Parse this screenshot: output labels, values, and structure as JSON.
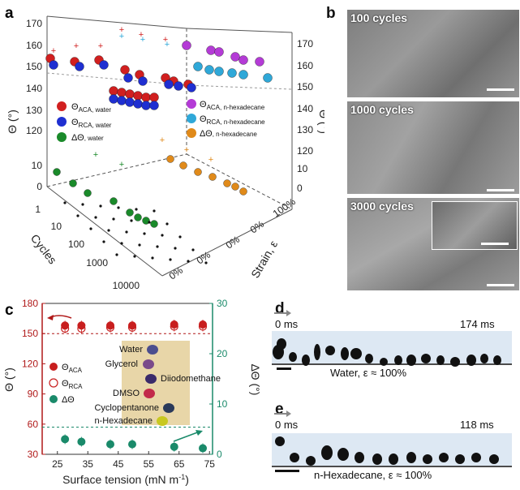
{
  "panels": {
    "a": "a",
    "b": "b",
    "c": "c",
    "d": "d",
    "e": "e"
  },
  "panel_a": {
    "y_left_label": "Θ (°)",
    "y_right_label": "Θ (°)",
    "x_label": "Cycles",
    "z_label": "Strain, ε",
    "y_ticks_top": [
      "120",
      "130",
      "140",
      "150",
      "160",
      "170"
    ],
    "y_ticks_bottom": [
      "0",
      "10"
    ],
    "y_ticks_right": [
      "120",
      "130",
      "140",
      "150",
      "160",
      "170"
    ],
    "y_ticks_right_bottom": [
      "0",
      "10"
    ],
    "cycle_ticks": [
      "1",
      "10",
      "100",
      "1000",
      "10000"
    ],
    "strain_ticks": [
      "0%",
      "0%",
      "0%",
      "0%",
      "100%"
    ],
    "legend_water": [
      "Θ",
      "Θ",
      "ΔΘ"
    ],
    "legend_water_subs": [
      "ACA, water",
      "RCA, water",
      ", water"
    ],
    "legend_hex": [
      "Θ",
      "Θ",
      "ΔΘ"
    ],
    "legend_hex_subs": [
      "ACA, n-hexadecane",
      "RCA, n-hexadecane",
      ", n-hexadecane"
    ],
    "colors": {
      "aca_water": "#d11f1f",
      "rca_water": "#1f2fd1",
      "dtheta_water": "#1a8a2a",
      "aca_hex": "#b43bd6",
      "rca_hex": "#2fa8d8",
      "dtheta_hex": "#e08a1a"
    }
  },
  "panel_b": {
    "labels": [
      "100 cycles",
      "1000 cycles",
      "3000 cycles"
    ]
  },
  "panel_c": {
    "x_label": "Surface tension (mN m",
    "x_label_sup": "-1",
    "x_label_end": ")",
    "y_left_label": "Θ (°)",
    "y_right_label": "ΔΘ (°)",
    "x_ticks": [
      "25",
      "35",
      "45",
      "55",
      "65",
      "75"
    ],
    "y_left_ticks": [
      "30",
      "60",
      "90",
      "120",
      "150",
      "180"
    ],
    "y_right_ticks": [
      "0",
      "10",
      "20",
      "30"
    ],
    "legend": [
      "Θ",
      "Θ",
      "ΔΘ"
    ],
    "legend_subs": [
      "ACA",
      "RCA",
      ""
    ],
    "liquids": [
      "Water",
      "Glycerol",
      "Diiodomethane",
      "DMSO",
      "Cyclopentanone",
      "n-Hexadecane"
    ],
    "colors": {
      "left_axis": "#b01818",
      "right_axis": "#1a8a6a",
      "aca": "#c81e1e",
      "rca": "#c81e1e",
      "dtheta": "#1a8a6a"
    }
  },
  "chart_data": [
    {
      "type": "scatter",
      "title": "",
      "xlabel": "Surface tension (mN m-1)",
      "ylabel": "Θ (°)",
      "y2label": "ΔΘ (°)",
      "xlim": [
        20,
        76
      ],
      "ylim": [
        30,
        180
      ],
      "y2lim": [
        0,
        30
      ],
      "series": [
        {
          "name": "ΘACA",
          "axis": "left",
          "x": [
            27.5,
            32.9,
            42.4,
            49.6,
            63.4,
            72.8
          ],
          "y": [
            158,
            158,
            158,
            158,
            159,
            159
          ]
        },
        {
          "name": "ΘRCA",
          "axis": "left",
          "x": [
            27.5,
            32.9,
            42.4,
            49.6,
            63.4,
            72.8
          ],
          "y": [
            155,
            155,
            156,
            156,
            157,
            157
          ]
        },
        {
          "name": "ΔΘ",
          "axis": "right",
          "x": [
            27.5,
            32.9,
            42.4,
            49.6,
            63.4,
            72.8
          ],
          "y": [
            3,
            2.5,
            2,
            2,
            1.5,
            1.2
          ]
        }
      ]
    }
  ],
  "panel_d": {
    "start": "0 ms",
    "end": "174 ms",
    "caption": "Water, ε ≈ 100%"
  },
  "panel_e": {
    "start": "0 ms",
    "end": "118 ms",
    "caption": "n-Hexadecane, ε ≈ 100%"
  }
}
